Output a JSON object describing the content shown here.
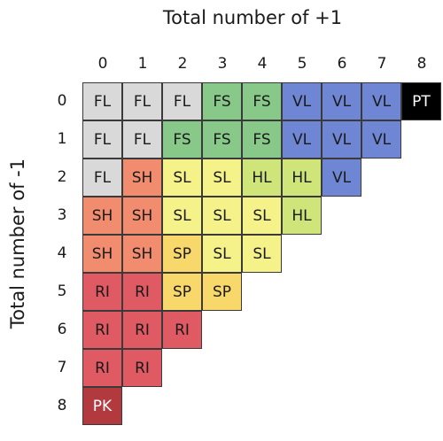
{
  "axes": {
    "top_title": "Total number of +1",
    "left_title": "Total number of -1",
    "col_labels": [
      "0",
      "1",
      "2",
      "3",
      "4",
      "5",
      "6",
      "7",
      "8"
    ],
    "row_labels": [
      "0",
      "1",
      "2",
      "3",
      "4",
      "5",
      "6",
      "7",
      "8"
    ]
  },
  "colors": {
    "FL": "#d9d9d9",
    "FS": "#88c98a",
    "VL": "#6f86d4",
    "PT": "#000000",
    "SH": "#f28c6e",
    "SL": "#f6f28a",
    "HL": "#cfe57a",
    "SP": "#f8d86a",
    "RI": "#e05a63",
    "PK": "#b23a3f"
  },
  "text_colors": {
    "PT": "#ffffff",
    "PK": "#ffffff"
  },
  "grid": [
    [
      "FL",
      "FL",
      "FL",
      "FS",
      "FS",
      "VL",
      "VL",
      "VL",
      "PT"
    ],
    [
      "FL",
      "FL",
      "FS",
      "FS",
      "FS",
      "VL",
      "VL",
      "VL"
    ],
    [
      "FL",
      "SH",
      "SL",
      "SL",
      "HL",
      "HL",
      "VL"
    ],
    [
      "SH",
      "SH",
      "SL",
      "SL",
      "SL",
      "HL"
    ],
    [
      "SH",
      "SH",
      "SP",
      "SL",
      "SL"
    ],
    [
      "RI",
      "RI",
      "SP",
      "SP"
    ],
    [
      "RI",
      "RI",
      "RI"
    ],
    [
      "RI",
      "RI"
    ],
    [
      "PK"
    ]
  ]
}
